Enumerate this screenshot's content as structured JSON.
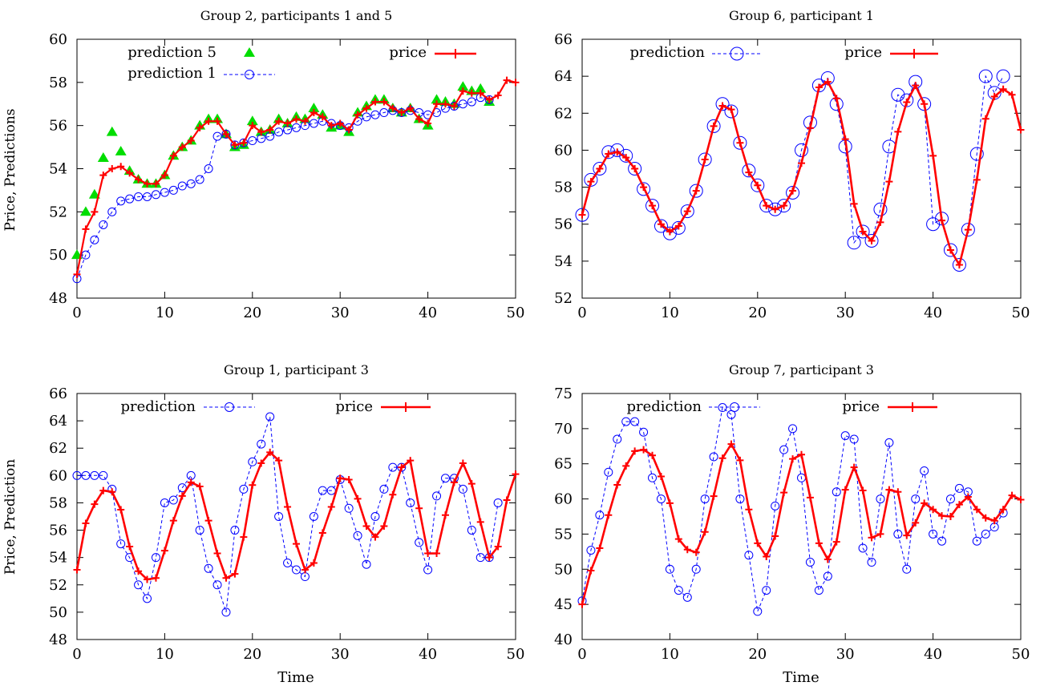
{
  "figure": {
    "xlabel": "Time"
  },
  "chart_data": [
    {
      "type": "line",
      "title": "Group 2, participants 1 and 5",
      "xlabel": "",
      "ylabel": "Price, Predictions",
      "xlim": [
        0,
        50
      ],
      "ylim": [
        48,
        60
      ],
      "xticks": [
        0,
        10,
        20,
        30,
        40,
        50
      ],
      "yticks": [
        48,
        50,
        52,
        54,
        56,
        58,
        60
      ],
      "series": [
        {
          "name": "prediction 5",
          "style": "triangle",
          "color": "#00dd00",
          "x": [
            0,
            1,
            2,
            3,
            4,
            5,
            6,
            7,
            8,
            9,
            10,
            11,
            12,
            13,
            14,
            15,
            16,
            17,
            18,
            19,
            20,
            21,
            22,
            23,
            24,
            25,
            26,
            27,
            28,
            29,
            30,
            31,
            32,
            33,
            34,
            35,
            36,
            37,
            38,
            39,
            40,
            41,
            42,
            43,
            44,
            45,
            46,
            47
          ],
          "values": [
            50.0,
            52.0,
            52.8,
            54.5,
            55.7,
            54.8,
            53.9,
            53.5,
            53.3,
            53.3,
            53.7,
            54.6,
            55.0,
            55.3,
            56.0,
            56.3,
            56.3,
            55.6,
            55.0,
            55.1,
            56.2,
            55.7,
            55.8,
            56.3,
            56.1,
            56.4,
            56.3,
            56.8,
            56.5,
            55.9,
            56.0,
            55.7,
            56.6,
            56.9,
            57.2,
            57.2,
            56.8,
            56.6,
            56.8,
            56.3,
            56.0,
            57.2,
            57.1,
            57.0,
            57.8,
            57.6,
            57.7,
            57.1
          ]
        },
        {
          "name": "prediction 1",
          "style": "circle-dashed",
          "color": "#0000ff",
          "x": [
            0,
            1,
            2,
            3,
            4,
            5,
            6,
            7,
            8,
            9,
            10,
            11,
            12,
            13,
            14,
            15,
            16,
            17,
            18,
            19,
            20,
            21,
            22,
            23,
            24,
            25,
            26,
            27,
            28,
            29,
            30,
            31,
            32,
            33,
            34,
            35,
            36,
            37,
            38,
            39,
            40,
            41,
            42,
            43,
            44,
            45,
            46,
            47
          ],
          "values": [
            48.9,
            50.0,
            50.7,
            51.4,
            52.0,
            52.5,
            52.6,
            52.7,
            52.7,
            52.8,
            52.9,
            53.0,
            53.2,
            53.3,
            53.5,
            54.0,
            55.5,
            55.6,
            55.1,
            55.2,
            55.3,
            55.4,
            55.5,
            55.7,
            55.8,
            55.9,
            56.0,
            56.1,
            56.2,
            56.1,
            56.0,
            55.9,
            56.2,
            56.4,
            56.5,
            56.6,
            56.7,
            56.6,
            56.7,
            56.6,
            56.5,
            56.6,
            56.8,
            56.9,
            57.0,
            57.1,
            57.3,
            57.2
          ]
        },
        {
          "name": "price",
          "style": "line-plus",
          "color": "#ff0000",
          "x": [
            0,
            1,
            2,
            3,
            4,
            5,
            6,
            7,
            8,
            9,
            10,
            11,
            12,
            13,
            14,
            15,
            16,
            17,
            18,
            19,
            20,
            21,
            22,
            23,
            24,
            25,
            26,
            27,
            28,
            29,
            30,
            31,
            32,
            33,
            34,
            35,
            36,
            37,
            38,
            39,
            40,
            41,
            42,
            43,
            44,
            45,
            46,
            47,
            48,
            49,
            50
          ],
          "values": [
            49.1,
            51.2,
            52.0,
            53.7,
            54.0,
            54.1,
            53.8,
            53.5,
            53.3,
            53.3,
            53.7,
            54.6,
            55.0,
            55.3,
            55.9,
            56.2,
            56.2,
            55.6,
            55.1,
            55.2,
            56.0,
            55.7,
            55.8,
            56.2,
            56.1,
            56.3,
            56.2,
            56.6,
            56.4,
            56.0,
            56.1,
            55.8,
            56.5,
            56.8,
            57.1,
            57.1,
            56.8,
            56.6,
            56.8,
            56.3,
            56.1,
            57.0,
            57.0,
            56.9,
            57.6,
            57.5,
            57.5,
            57.2,
            57.4,
            58.1,
            58.0
          ]
        }
      ]
    },
    {
      "type": "line",
      "title": "Group 6, participant 1",
      "xlabel": "",
      "ylabel": "",
      "xlim": [
        0,
        50
      ],
      "ylim": [
        52,
        66
      ],
      "xticks": [
        0,
        10,
        20,
        30,
        40,
        50
      ],
      "yticks": [
        52,
        54,
        56,
        58,
        60,
        62,
        64,
        66
      ],
      "series": [
        {
          "name": "prediction",
          "style": "circle-large-dashed",
          "color": "#0000ff",
          "x": [
            0,
            1,
            2,
            3,
            4,
            5,
            6,
            7,
            8,
            9,
            10,
            11,
            12,
            13,
            14,
            15,
            16,
            17,
            18,
            19,
            20,
            21,
            22,
            23,
            24,
            25,
            26,
            27,
            28,
            29,
            30,
            31,
            32,
            33,
            34,
            35,
            36,
            37,
            38,
            39,
            40,
            41,
            42,
            43,
            44,
            45,
            46,
            47,
            48
          ],
          "values": [
            56.5,
            58.4,
            59.0,
            59.9,
            60.0,
            59.7,
            59.0,
            57.9,
            57.0,
            55.9,
            55.5,
            55.8,
            56.7,
            57.8,
            59.5,
            61.3,
            62.5,
            62.1,
            60.4,
            58.9,
            58.1,
            57.0,
            56.8,
            57.0,
            57.7,
            60.0,
            61.5,
            63.5,
            63.9,
            62.5,
            60.2,
            55.0,
            55.6,
            55.1,
            56.8,
            60.2,
            63.0,
            62.7,
            63.7,
            62.5,
            56.0,
            56.3,
            54.6,
            53.8,
            55.7,
            59.8,
            64.0,
            63.1,
            64.0
          ]
        },
        {
          "name": "price",
          "style": "line-plus",
          "color": "#ff0000",
          "x": [
            0,
            1,
            2,
            3,
            4,
            5,
            6,
            7,
            8,
            9,
            10,
            11,
            12,
            13,
            14,
            15,
            16,
            17,
            18,
            19,
            20,
            21,
            22,
            23,
            24,
            25,
            26,
            27,
            28,
            29,
            30,
            31,
            32,
            33,
            34,
            35,
            36,
            37,
            38,
            39,
            40,
            41,
            42,
            43,
            44,
            45,
            46,
            47,
            48,
            49,
            50
          ],
          "values": [
            56.5,
            58.3,
            59.0,
            59.8,
            59.9,
            59.6,
            59.0,
            58.0,
            57.0,
            56.0,
            55.6,
            55.9,
            56.7,
            57.8,
            59.5,
            61.3,
            62.4,
            62.2,
            60.4,
            58.8,
            58.1,
            57.0,
            56.8,
            57.0,
            57.8,
            59.3,
            61.2,
            63.4,
            63.7,
            62.8,
            60.6,
            57.1,
            55.6,
            55.1,
            56.1,
            58.3,
            61.0,
            62.6,
            63.5,
            62.5,
            59.7,
            56.2,
            54.6,
            53.8,
            55.7,
            58.4,
            61.7,
            62.9,
            63.3,
            63.0,
            61.1
          ]
        }
      ]
    },
    {
      "type": "line",
      "title": "Group 1, participant 3",
      "xlabel": "Time",
      "ylabel": "Price, Prediction",
      "xlim": [
        0,
        50
      ],
      "ylim": [
        48,
        66
      ],
      "xticks": [
        0,
        10,
        20,
        30,
        40,
        50
      ],
      "yticks": [
        48,
        50,
        52,
        54,
        56,
        58,
        60,
        62,
        64,
        66
      ],
      "series": [
        {
          "name": "prediction",
          "style": "circle-dashed",
          "color": "#0000ff",
          "x": [
            0,
            1,
            2,
            3,
            4,
            5,
            6,
            7,
            8,
            9,
            10,
            11,
            12,
            13,
            14,
            15,
            16,
            17,
            18,
            19,
            20,
            21,
            22,
            23,
            24,
            25,
            26,
            27,
            28,
            29,
            30,
            31,
            32,
            33,
            34,
            35,
            36,
            37,
            38,
            39,
            40,
            41,
            42,
            43,
            44,
            45,
            46,
            47,
            48
          ],
          "values": [
            60.0,
            60.0,
            60.0,
            60.0,
            59.0,
            55.0,
            54.0,
            52.0,
            51.0,
            54.0,
            58.0,
            58.2,
            59.1,
            60.0,
            56.0,
            53.2,
            52.0,
            50.0,
            56.0,
            59.0,
            61.0,
            62.3,
            64.3,
            57.0,
            53.6,
            53.1,
            52.6,
            57.0,
            58.9,
            58.9,
            59.7,
            57.6,
            55.6,
            53.5,
            57.0,
            59.0,
            60.6,
            60.6,
            58.0,
            55.1,
            53.1,
            58.5,
            59.8,
            59.8,
            59.0,
            56.0,
            54.0,
            54.0,
            58.0
          ]
        },
        {
          "name": "price",
          "style": "line-plus",
          "color": "#ff0000",
          "x": [
            0,
            1,
            2,
            3,
            4,
            5,
            6,
            7,
            8,
            9,
            10,
            11,
            12,
            13,
            14,
            15,
            16,
            17,
            18,
            19,
            20,
            21,
            22,
            23,
            24,
            25,
            26,
            27,
            28,
            29,
            30,
            31,
            32,
            33,
            34,
            35,
            36,
            37,
            38,
            39,
            40,
            41,
            42,
            43,
            44,
            45,
            46,
            47,
            48,
            49,
            50
          ],
          "values": [
            53.1,
            56.5,
            57.9,
            58.9,
            58.8,
            57.5,
            54.8,
            53.0,
            52.4,
            52.5,
            54.5,
            56.7,
            58.5,
            59.5,
            59.2,
            56.7,
            54.3,
            52.5,
            52.8,
            55.5,
            59.3,
            60.9,
            61.7,
            61.1,
            57.7,
            55.0,
            53.1,
            53.6,
            55.8,
            57.7,
            59.8,
            59.7,
            58.3,
            56.3,
            55.5,
            56.3,
            58.6,
            60.6,
            61.1,
            57.6,
            54.3,
            54.3,
            57.1,
            59.5,
            60.9,
            59.4,
            56.6,
            54.0,
            54.8,
            58.2,
            60.1
          ]
        }
      ]
    },
    {
      "type": "line",
      "title": "Group 7, participant 3",
      "xlabel": "Time",
      "ylabel": "",
      "xlim": [
        0,
        50
      ],
      "ylim": [
        40,
        75
      ],
      "xticks": [
        0,
        10,
        20,
        30,
        40,
        50
      ],
      "yticks": [
        40,
        45,
        50,
        55,
        60,
        65,
        70,
        75
      ],
      "series": [
        {
          "name": "prediction",
          "style": "circle-dashed",
          "color": "#0000ff",
          "x": [
            0,
            1,
            2,
            3,
            4,
            5,
            6,
            7,
            8,
            9,
            10,
            11,
            12,
            13,
            14,
            15,
            16,
            17,
            18,
            19,
            20,
            21,
            22,
            23,
            24,
            25,
            26,
            27,
            28,
            29,
            30,
            31,
            32,
            33,
            34,
            35,
            36,
            37,
            38,
            39,
            40,
            41,
            42,
            43,
            44,
            45,
            46,
            47,
            48
          ],
          "values": [
            45.5,
            52.7,
            57.7,
            63.8,
            68.5,
            71.0,
            71.0,
            69.5,
            63.0,
            60.0,
            50.0,
            47.0,
            46.0,
            50.0,
            60.0,
            66.0,
            73.0,
            72.0,
            60.0,
            52.0,
            44.0,
            47.0,
            59.0,
            67.0,
            70.0,
            63.0,
            51.0,
            47.0,
            49.0,
            61.0,
            69.0,
            68.5,
            53.0,
            51.0,
            60.0,
            68.0,
            55.0,
            50.0,
            60.0,
            64.0,
            55.0,
            54.0,
            60.0,
            61.5,
            61.0,
            54.0,
            55.0,
            56.0,
            58.0
          ]
        },
        {
          "name": "price",
          "style": "line-plus",
          "color": "#ff0000",
          "x": [
            0,
            1,
            2,
            3,
            4,
            5,
            6,
            7,
            8,
            9,
            10,
            11,
            12,
            13,
            14,
            15,
            16,
            17,
            18,
            19,
            20,
            21,
            22,
            23,
            24,
            25,
            26,
            27,
            28,
            29,
            30,
            31,
            32,
            33,
            34,
            35,
            36,
            37,
            38,
            39,
            40,
            41,
            42,
            43,
            44,
            45,
            46,
            47,
            48,
            49,
            50
          ],
          "values": [
            45.0,
            49.8,
            53.0,
            57.7,
            62.0,
            64.7,
            66.8,
            67.0,
            66.2,
            63.2,
            59.4,
            54.3,
            52.8,
            52.4,
            55.3,
            60.4,
            65.8,
            67.8,
            65.5,
            58.5,
            53.7,
            51.8,
            54.7,
            60.9,
            65.7,
            66.3,
            60.2,
            53.7,
            51.4,
            53.9,
            61.3,
            64.5,
            61.2,
            54.5,
            55.0,
            61.3,
            61.0,
            54.8,
            56.6,
            59.4,
            58.5,
            57.6,
            57.5,
            59.2,
            60.3,
            58.5,
            57.3,
            56.9,
            58.5,
            60.5,
            59.9
          ]
        }
      ]
    }
  ]
}
